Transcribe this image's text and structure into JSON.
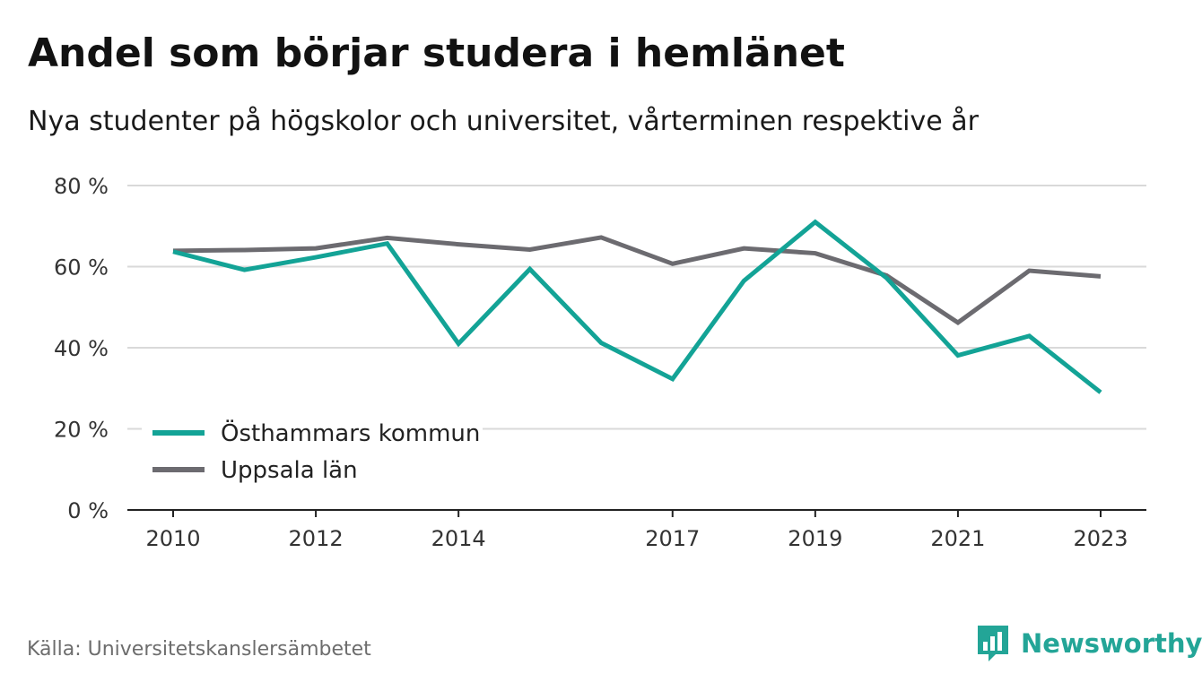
{
  "header": {
    "title": "Andel som börjar studera i hemlänet",
    "subtitle": "Nya studenter på högskolor och universitet, vårterminen respektive år"
  },
  "footer": {
    "source": "Källa: Universitetskanslersämbetet",
    "brand": "Newsworthy",
    "brand_icon": "bar-chart-speech-bubble-icon"
  },
  "colors": {
    "series_1": "#13a396",
    "series_2": "#6c6b70",
    "grid": "#d9d9d9",
    "axis": "#222222",
    "brand": "#23a597"
  },
  "chart_data": {
    "type": "line",
    "title": "Andel som börjar studera i hemlänet",
    "subtitle": "Nya studenter på högskolor och universitet, vårterminen respektive år",
    "xlabel": "",
    "ylabel": "",
    "ylim": [
      0,
      80
    ],
    "yticks": [
      0,
      20,
      40,
      60,
      80
    ],
    "ytick_labels": [
      "0 %",
      "20 %",
      "40 %",
      "60 %",
      "80 %"
    ],
    "x": [
      2010,
      2011,
      2012,
      2013,
      2014,
      2015,
      2016,
      2017,
      2018,
      2019,
      2020,
      2021,
      2022,
      2023
    ],
    "xticks": [
      2010,
      2012,
      2014,
      2017,
      2019,
      2021,
      2023
    ],
    "xtick_labels": [
      "2010",
      "2012",
      "2014",
      "2017",
      "2019",
      "2021",
      "2023"
    ],
    "grid": true,
    "legend": "bottom-left",
    "series": [
      {
        "name": "Östhammars kommun",
        "values": [
          63.7,
          59.2,
          62.3,
          65.7,
          41.0,
          59.4,
          41.2,
          32.3,
          56.5,
          71.0,
          57.2,
          38.1,
          42.9,
          29.0
        ]
      },
      {
        "name": "Uppsala län",
        "values": [
          63.9,
          64.1,
          64.5,
          67.1,
          65.5,
          64.2,
          67.2,
          60.7,
          64.5,
          63.3,
          57.8,
          46.2,
          59.0,
          57.6
        ]
      }
    ]
  }
}
